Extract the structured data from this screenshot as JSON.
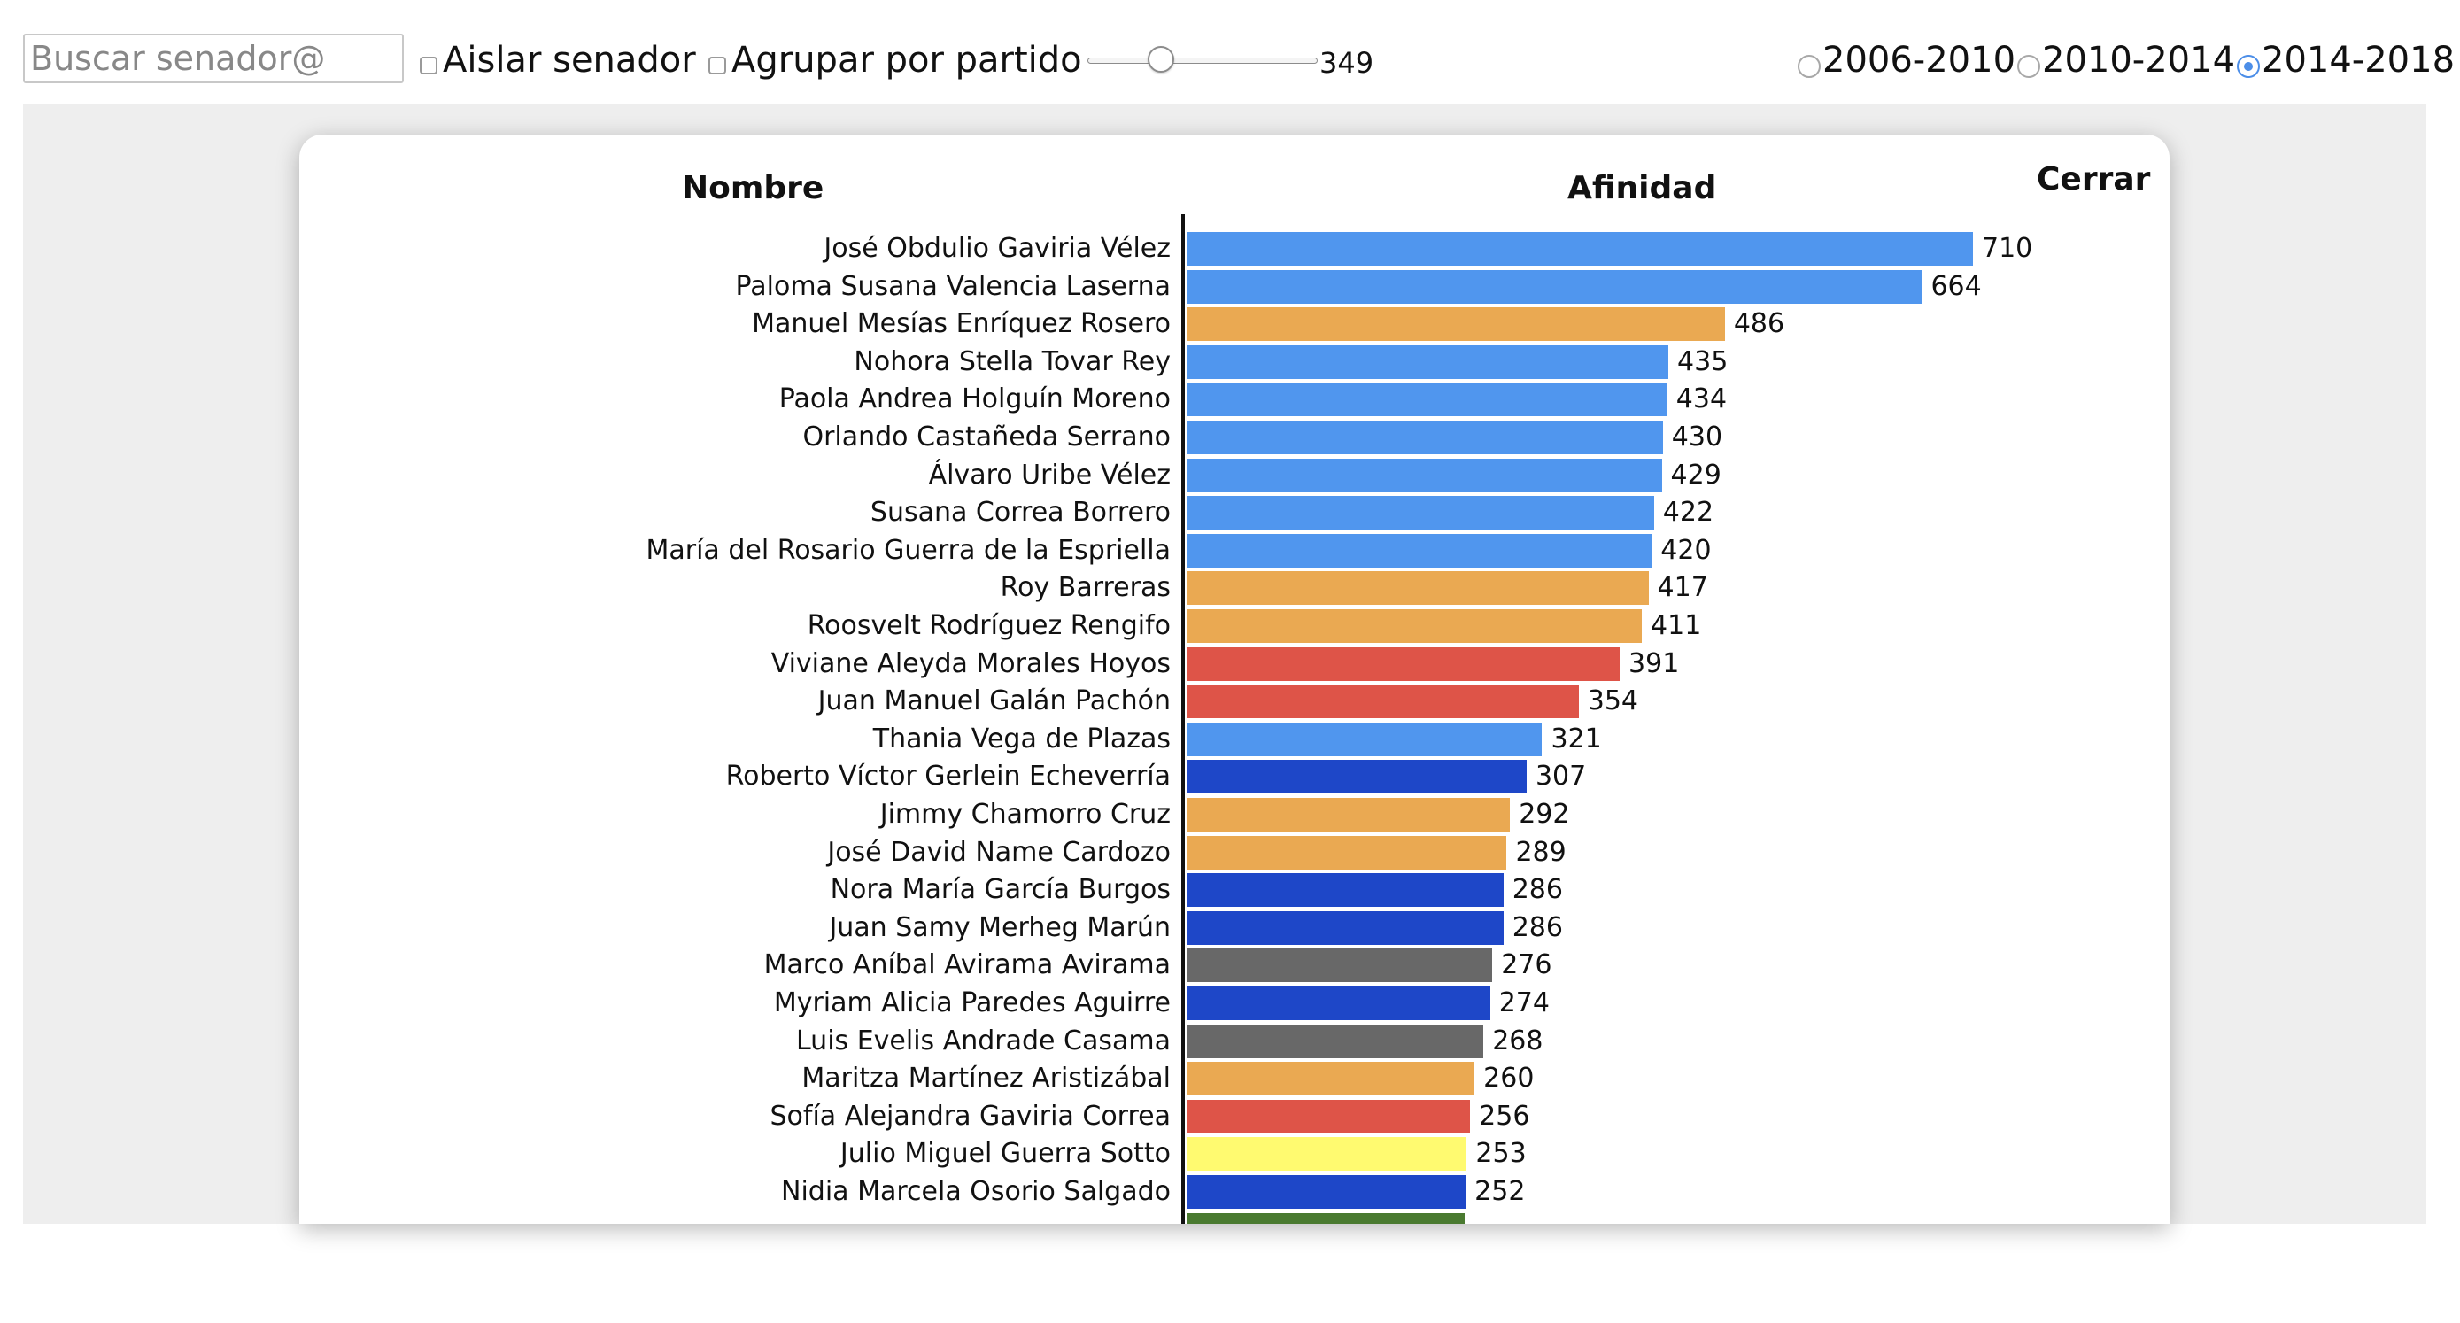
{
  "toolbar": {
    "search_placeholder": "Buscar senador@",
    "search_value": "",
    "isolate_label": "Aislar senador",
    "group_label": "Agrupar por partido",
    "slider_value": 349,
    "slider_fraction": 0.26,
    "periods": [
      {
        "label": "2006-2010",
        "selected": false
      },
      {
        "label": "2010-2014",
        "selected": false
      },
      {
        "label": "2014-2018",
        "selected": true
      }
    ]
  },
  "modal": {
    "name_header": "Nombre",
    "affinity_header": "Afinidad",
    "close_label": "Cerrar"
  },
  "colors": {
    "light_blue": "#5096ee",
    "orange": "#eaa952",
    "red": "#de5448",
    "dark_blue": "#1e47c8",
    "grey": "#686868",
    "yellow": "#fffa70",
    "green": "#4a7a30"
  },
  "chart_data": {
    "type": "bar",
    "orientation": "horizontal",
    "xlim": [
      0,
      710
    ],
    "rows": [
      {
        "name": "José Obdulio Gaviria Vélez",
        "value": 710,
        "color": "#5096ee"
      },
      {
        "name": "Paloma Susana Valencia Laserna",
        "value": 664,
        "color": "#5096ee"
      },
      {
        "name": "Manuel Mesías Enríquez Rosero",
        "value": 486,
        "color": "#eaa952"
      },
      {
        "name": "Nohora Stella Tovar Rey",
        "value": 435,
        "color": "#5096ee"
      },
      {
        "name": "Paola Andrea Holguín Moreno",
        "value": 434,
        "color": "#5096ee"
      },
      {
        "name": "Orlando Castañeda Serrano",
        "value": 430,
        "color": "#5096ee"
      },
      {
        "name": "Álvaro Uribe Vélez",
        "value": 429,
        "color": "#5096ee"
      },
      {
        "name": "Susana Correa Borrero",
        "value": 422,
        "color": "#5096ee"
      },
      {
        "name": "María del Rosario Guerra de la Espriella",
        "value": 420,
        "color": "#5096ee"
      },
      {
        "name": "Roy Barreras",
        "value": 417,
        "color": "#eaa952"
      },
      {
        "name": "Roosvelt Rodríguez Rengifo",
        "value": 411,
        "color": "#eaa952"
      },
      {
        "name": "Viviane Aleyda Morales Hoyos",
        "value": 391,
        "color": "#de5448"
      },
      {
        "name": "Juan Manuel Galán Pachón",
        "value": 354,
        "color": "#de5448"
      },
      {
        "name": "Thania Vega de Plazas",
        "value": 321,
        "color": "#5096ee"
      },
      {
        "name": "Roberto Víctor Gerlein Echeverría",
        "value": 307,
        "color": "#1e47c8"
      },
      {
        "name": "Jimmy Chamorro Cruz",
        "value": 292,
        "color": "#eaa952"
      },
      {
        "name": "José David Name Cardozo",
        "value": 289,
        "color": "#eaa952"
      },
      {
        "name": "Nora María García Burgos",
        "value": 286,
        "color": "#1e47c8"
      },
      {
        "name": "Juan Samy Merheg Marún",
        "value": 286,
        "color": "#1e47c8"
      },
      {
        "name": "Marco Aníbal Avirama Avirama",
        "value": 276,
        "color": "#686868"
      },
      {
        "name": "Myriam Alicia Paredes Aguirre",
        "value": 274,
        "color": "#1e47c8"
      },
      {
        "name": "Luis Evelis Andrade Casama",
        "value": 268,
        "color": "#686868"
      },
      {
        "name": "Maritza Martínez Aristizábal",
        "value": 260,
        "color": "#eaa952"
      },
      {
        "name": "Sofía Alejandra Gaviria Correa",
        "value": 256,
        "color": "#de5448"
      },
      {
        "name": "Julio Miguel Guerra Sotto",
        "value": 253,
        "color": "#fffa70"
      },
      {
        "name": "Nidia Marcela Osorio Salgado",
        "value": 252,
        "color": "#1e47c8"
      },
      {
        "name": "",
        "value": null,
        "color": "#4a7a30"
      }
    ]
  }
}
